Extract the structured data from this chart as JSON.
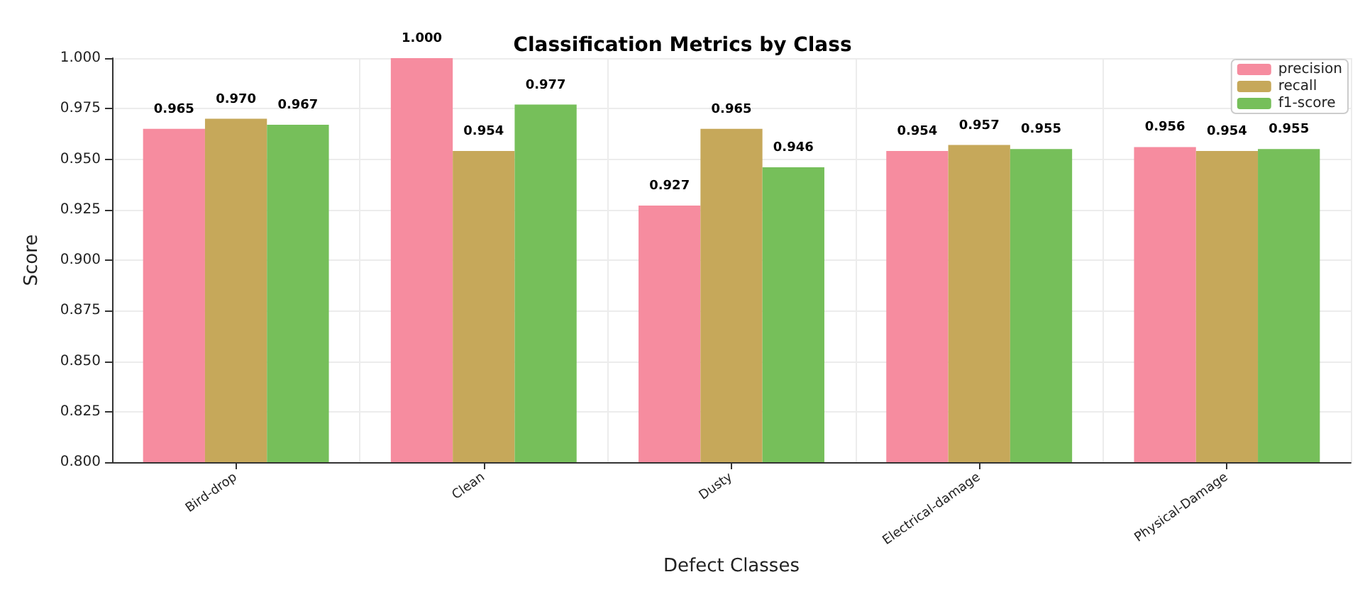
{
  "chart_data": {
    "type": "bar",
    "title": "Classification Metrics by Class",
    "xlabel": "Defect Classes",
    "ylabel": "Score",
    "categories": [
      "Bird-drop",
      "Clean",
      "Dusty",
      "Electrical-damage",
      "Physical-Damage"
    ],
    "series": [
      {
        "name": "precision",
        "color": "#f68c9f",
        "values": [
          0.965,
          1.0,
          0.927,
          0.954,
          0.956
        ],
        "value_labels": [
          "0.965",
          "1.000",
          "0.927",
          "0.954",
          "0.956"
        ]
      },
      {
        "name": "recall",
        "color": "#c6a85a",
        "values": [
          0.97,
          0.954,
          0.965,
          0.957,
          0.954
        ],
        "value_labels": [
          "0.970",
          "0.954",
          "0.965",
          "0.957",
          "0.954"
        ]
      },
      {
        "name": "f1-score",
        "color": "#76bf5a",
        "values": [
          0.967,
          0.977,
          0.946,
          0.955,
          0.955
        ],
        "value_labels": [
          "0.967",
          "0.977",
          "0.946",
          "0.955",
          "0.955"
        ]
      }
    ],
    "ylim": [
      0.8,
      1.0
    ],
    "yticks": [
      {
        "value": 0.8,
        "label": "0.800"
      },
      0.825,
      {
        "value": 0.85,
        "label": "0.850"
      },
      0.875,
      {
        "value": 0.9,
        "label": "0.900"
      },
      0.925,
      {
        "value": 0.95,
        "label": "0.950"
      },
      0.975,
      {
        "value": 1.0,
        "label": "1.000"
      }
    ],
    "grid": true,
    "legend": "top right"
  }
}
